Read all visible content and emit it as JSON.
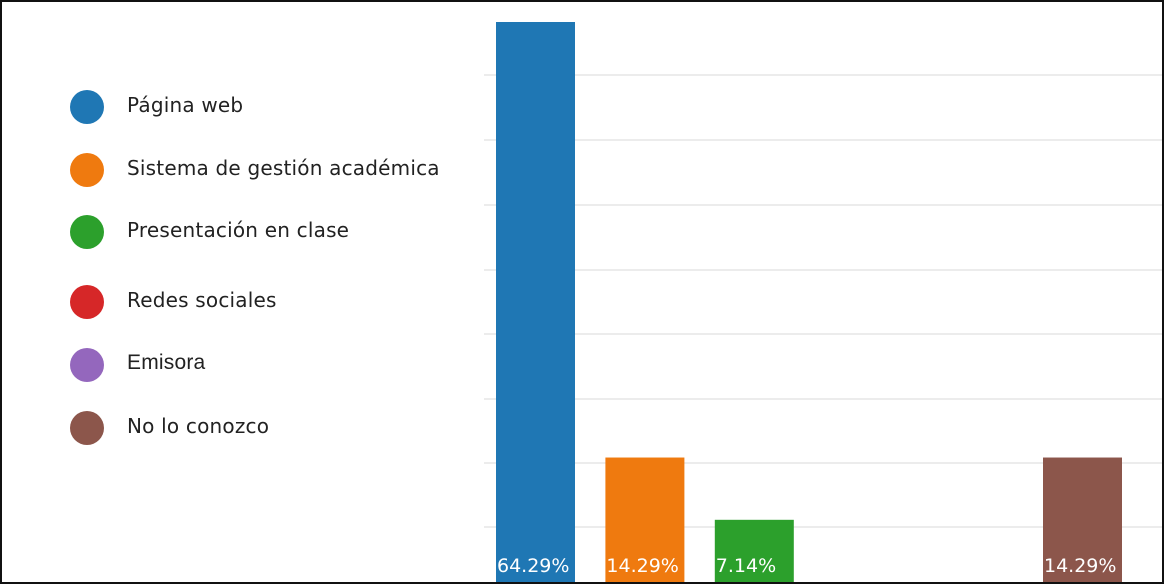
{
  "chart_data": {
    "type": "bar",
    "categories": [
      "Página web",
      "Sistema de gestión académica",
      "Presentación en clase",
      "Redes sociales",
      "Emisora",
      "No lo conozco"
    ],
    "values": [
      64.29,
      14.29,
      7.14,
      0,
      0,
      14.29
    ],
    "data_labels": [
      "64.29%",
      "14.29%",
      "7.14%",
      "",
      "",
      "14.29%"
    ],
    "colors": [
      "#1f77b4",
      "#ef7a0f",
      "#2ca02c",
      "#d62728",
      "#9467bd",
      "#8c564b"
    ],
    "ylim": [
      0,
      64.29
    ],
    "grid": true,
    "legend_position": "left"
  }
}
